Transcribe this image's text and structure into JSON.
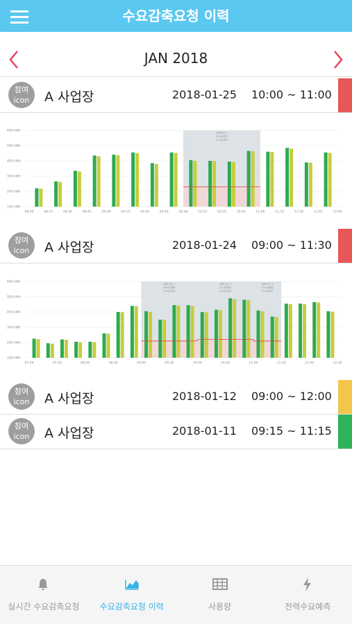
{
  "header": {
    "title": "수요감축요청 이력"
  },
  "month_nav": {
    "title": "JAN 2018"
  },
  "items": [
    {
      "badge": [
        "참여",
        "icon"
      ],
      "name": "A 사업장",
      "date": "2018-01-25",
      "time": "10:00 ~ 11:00",
      "status_color": "#e85757",
      "chart_data": {
        "type": "bar",
        "ylim": [
          100,
          600
        ],
        "yticks": [
          {
            "value": 100,
            "label": "100 kWh"
          },
          {
            "value": 200,
            "label": "200 kWh"
          },
          {
            "value": 300,
            "label": "300 kWh"
          },
          {
            "value": 400,
            "label": "400 kWh"
          },
          {
            "value": 500,
            "label": "500 kWh"
          },
          {
            "value": 600,
            "label": "600 kWh"
          }
        ],
        "grid": true,
        "x_labels": [
          "08:00",
          "08:15",
          "08:30",
          "08:45",
          "09:00",
          "09:15",
          "09:30",
          "09:45",
          "10:00",
          "10:15",
          "10:30",
          "10:45",
          "11:00",
          "11:15",
          "11:30",
          "11:45",
          "12:00"
        ],
        "series": [
          {
            "color": "#2eaa52",
            "values": [
              220,
              265,
              335,
              435,
              440,
              455,
              385,
              455,
              405,
              400,
              395,
              465,
              460,
              485,
              390,
              455
            ]
          },
          {
            "color": "#c6cd3e",
            "values": [
              218,
              262,
              330,
              430,
              438,
              450,
              380,
              452,
              400,
              398,
              392,
              462,
              458,
              480,
              388,
              452
            ]
          }
        ],
        "regions": [
          {
            "lines": [
              "감축구간 1",
              "10:00부터",
              "11:00까지"
            ],
            "baseline": 230,
            "baseline_color": "#e04040"
          }
        ]
      }
    },
    {
      "badge": [
        "참여",
        "icon"
      ],
      "name": "A 사업장",
      "date": "2018-01-24",
      "time": "09:00 ~ 11:30",
      "status_color": "#e85757",
      "chart_data": {
        "type": "bar",
        "ylim": [
          100,
          600
        ],
        "yticks": [
          {
            "value": 100,
            "label": "100 kWh"
          },
          {
            "value": 200,
            "label": "200 kWh"
          },
          {
            "value": 300,
            "label": "300 kWh"
          },
          {
            "value": 400,
            "label": "400 kWh"
          },
          {
            "value": 500,
            "label": "500 kWh"
          },
          {
            "value": 600,
            "label": "600 kWh"
          }
        ],
        "grid": true,
        "x_labels": [
          "07:00",
          "07:30",
          "08:00",
          "08:30",
          "09:00",
          "09:30",
          "10:00",
          "10:30",
          "11:00",
          "11:30",
          "12:00",
          "12:30"
        ],
        "series": [
          {
            "color": "#2eaa52",
            "values": [
              225,
              195,
              220,
              205,
              205,
              260,
              400,
              440,
              405,
              350,
              445,
              445,
              400,
              415,
              490,
              480,
              410,
              370,
              455,
              455,
              465,
              405
            ]
          },
          {
            "color": "#c6cd3e",
            "values": [
              222,
              192,
              218,
              202,
              203,
              258,
              398,
              438,
              400,
              348,
              442,
              440,
              398,
              412,
              485,
              478,
              405,
              368,
              452,
              452,
              462,
              402
            ]
          }
        ],
        "regions": [
          {
            "lines": [
              "감축구간 1",
              "09:00부터",
              "10:00까지"
            ],
            "baseline": 210,
            "baseline_color": "#e04040"
          },
          {
            "lines": [
              "감축구간 2",
              "10:00부터",
              "11:00까지"
            ],
            "baseline": 220,
            "baseline_color": "#e04040"
          },
          {
            "lines": [
              "감축구간 3",
              "11:00부터",
              "11:30까지"
            ],
            "baseline": 210,
            "baseline_color": "#e04040"
          }
        ]
      }
    },
    {
      "badge": [
        "참여",
        "icon"
      ],
      "name": "A 사업장",
      "date": "2018-01-12",
      "time": "09:00 ~ 12:00",
      "status_color": "#f2c64c"
    },
    {
      "badge": [
        "참여",
        "icon"
      ],
      "name": "A 사업장",
      "date": "2018-01-11",
      "time": "09:15 ~ 11:15",
      "status_color": "#2db35a"
    }
  ],
  "tabs": [
    {
      "label": "실시간 수요감축요청",
      "active": false
    },
    {
      "label": "수요감축요청 이력",
      "active": true
    },
    {
      "label": "사용량",
      "active": false
    },
    {
      "label": "전력수요예측",
      "active": false
    }
  ]
}
